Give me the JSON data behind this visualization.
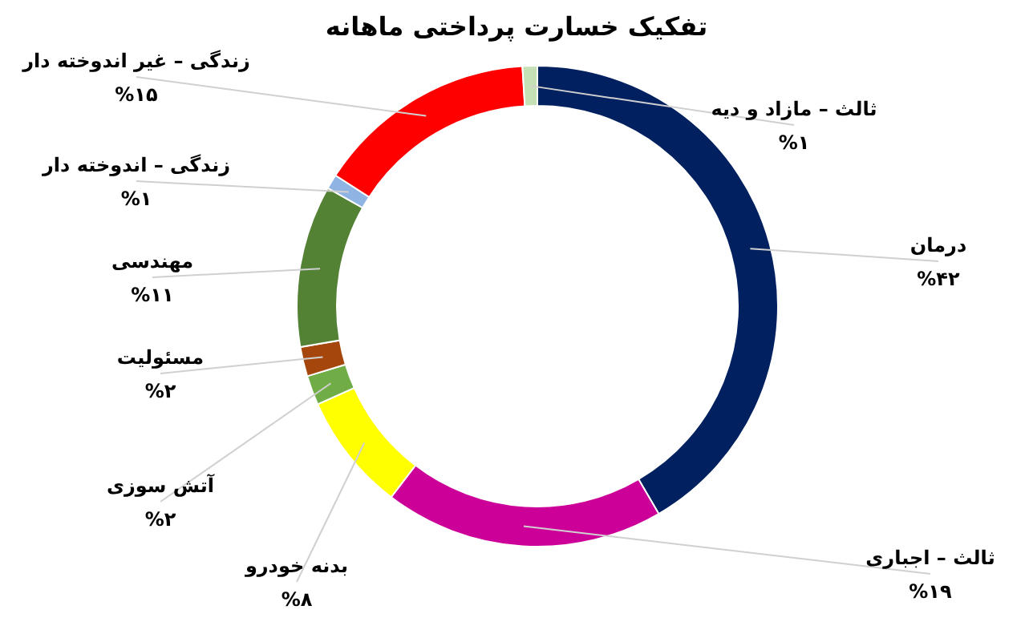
{
  "chart_data": {
    "type": "donut",
    "title": "تفکیک خسارت پرداختی ماهانه",
    "categories": [
      "درمان",
      "ثالث – اجباری",
      "بدنه خودرو",
      "آتش سوزی",
      "مسئولیت",
      "مهندسی",
      "زندگی – اندوخته دار",
      "زندگی – غیر اندوخته دار",
      "ثالث – مازاد و دیه"
    ],
    "values": [
      42,
      19,
      8,
      2,
      2,
      11,
      1,
      15,
      1
    ],
    "value_labels": [
      "%۴۲",
      "%۱۹",
      "%۸",
      "%۲",
      "%۲",
      "%۱۱",
      "%۱",
      "%۱۵",
      "%۱"
    ],
    "colors": [
      "#002060",
      "#cc0099",
      "#ffff00",
      "#70ad47",
      "#a5470c",
      "#548235",
      "#8fb4e3",
      "#ff0000",
      "#c5e0b4"
    ]
  }
}
